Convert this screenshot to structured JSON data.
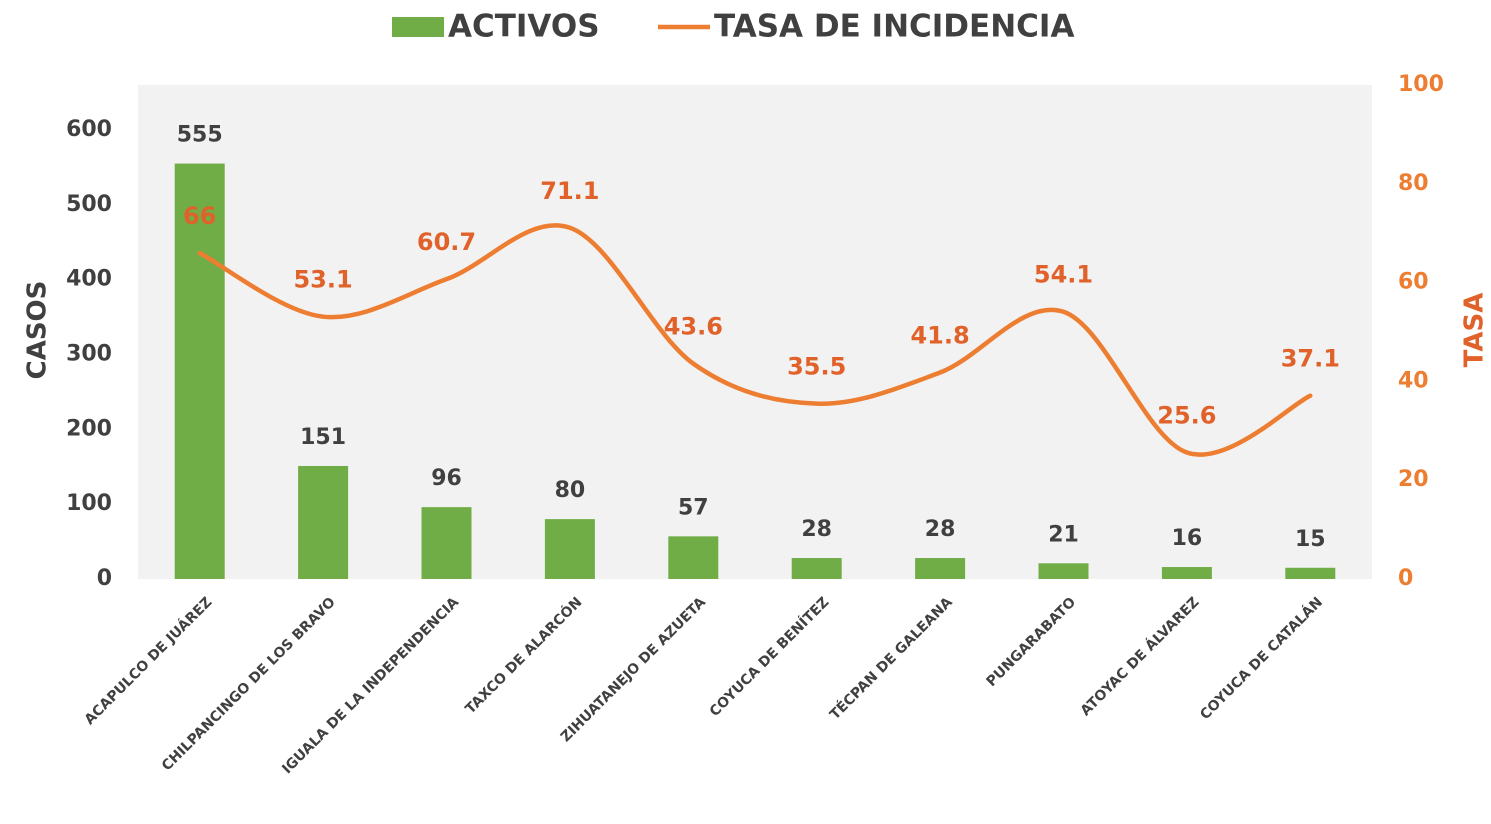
{
  "chart_data": {
    "type": "bar-line",
    "categories": [
      "ACAPULCO DE JUÁREZ",
      "CHILPANCINGO DE LOS BRAVO",
      "IGUALA DE LA INDEPENDENCIA",
      "TAXCO DE ALARCÓN",
      "ZIHUATANEJO DE AZUETA",
      "COYUCA DE BENÍTEZ",
      "TÉCPAN DE GALEANA",
      "PUNGARABATO",
      "ATOYAC DE ÁLVAREZ",
      "COYUCA DE CATALÁN"
    ],
    "series": [
      {
        "name": "ACTIVOS",
        "type": "bar",
        "color": "#70ad47",
        "values": [
          555,
          151,
          96,
          80,
          57,
          28,
          28,
          21,
          16,
          15
        ]
      },
      {
        "name": "TASA DE INCIDENCIA",
        "type": "line",
        "axis": "y2",
        "color": "#ed7d31",
        "values": [
          66,
          53.1,
          60.7,
          71.1,
          43.6,
          35.5,
          41.8,
          54.1,
          25.6,
          37.1
        ]
      }
    ],
    "ylabel": "CASOS",
    "y2label": "TASA",
    "ylim": [
      0,
      660
    ],
    "yticks": [
      0,
      100,
      200,
      300,
      400,
      500,
      600
    ],
    "y2lim": [
      0,
      100
    ],
    "y2ticks": [
      0,
      20,
      40,
      60,
      80,
      100
    ],
    "legend": "top"
  }
}
